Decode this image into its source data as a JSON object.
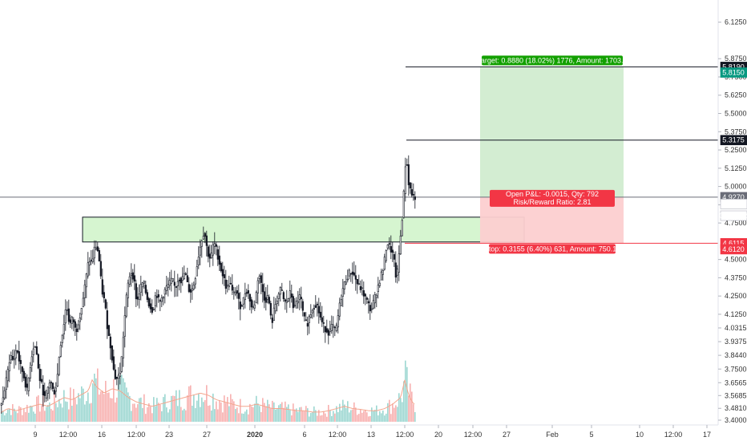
{
  "chart_data": {
    "type": "candlestick",
    "title": "",
    "xlabel": "",
    "ylabel": "",
    "ylim": [
      3.4,
      6.2
    ],
    "y_ticks": [
      "6.1250",
      "5.8750",
      "5.7500",
      "5.6250",
      "5.5000",
      "5.3750",
      "5.2500",
      "5.1250",
      "5.0000",
      "4.8750",
      "4.7500",
      "4.5000",
      "4.3750",
      "4.2500",
      "4.1250",
      "4.0315",
      "3.9375",
      "3.8440",
      "3.7500",
      "3.6565",
      "3.5685",
      "3.4810",
      "3.4000"
    ],
    "x_ticks": [
      "9",
      "12:00",
      "16",
      "12:00",
      "23",
      "27",
      "2020",
      "6",
      "12:00",
      "13",
      "12:00",
      "20",
      "12:00",
      "27",
      "Feb",
      "5",
      "10",
      "12:00",
      "17"
    ],
    "price_tags": [
      {
        "label": "5.8190",
        "value": 5.819,
        "color": "#131722"
      },
      {
        "label": "5.8150",
        "value": 5.78,
        "color": "#089981"
      },
      {
        "label": "5.3175",
        "value": 5.3175,
        "color": "#131722"
      },
      {
        "label": "4.9270",
        "value": 4.927,
        "color": "#6a6d78"
      },
      {
        "label": "4.9255",
        "value": 4.88,
        "color": "#ffffff"
      },
      {
        "label": "02:14:52",
        "value": 4.8,
        "color": "#ffffff"
      },
      {
        "label": "4.6115",
        "value": 4.6115,
        "color": "#f23645"
      },
      {
        "label": "4.6120",
        "value": 4.57,
        "color": "#f23645"
      }
    ],
    "horizontal_lines": [
      {
        "name": "target-line",
        "value": 5.819
      },
      {
        "name": "recent-high-line",
        "value": 5.3175
      },
      {
        "name": "entry-line",
        "value": 4.927
      },
      {
        "name": "stop-line",
        "value": 4.6115
      }
    ],
    "support_zone": {
      "low": 4.62,
      "high": 4.79
    },
    "position": {
      "entry": 4.927,
      "target": 5.819,
      "stop": 4.6115,
      "target_label": "Target: 0.8880 (18.02%) 1776, Amount: 1703.3",
      "open_label": "Open P&L: -0.0015, Qty: 792",
      "ratio_label": "Risk/Reward Ratio: 2.81",
      "stop_label": "Stop: 0.3155 (6.40%) 631, Amount: 750.12"
    },
    "colors": {
      "up": "#26a69a",
      "down": "#ef5350",
      "candle": "#131722",
      "zone_fill": "#ccf2c4",
      "target_fill": "#d1ecd0",
      "stop_fill": "#fccfd0",
      "target_tag": "#13a000",
      "stop_tag": "#f23645",
      "stop_line": "#f23645"
    },
    "price_path": [
      [
        0,
        3.49
      ],
      [
        5,
        3.55
      ],
      [
        10,
        3.7
      ],
      [
        14,
        3.85
      ],
      [
        18,
        3.8
      ],
      [
        22,
        3.9
      ],
      [
        26,
        3.78
      ],
      [
        30,
        3.72
      ],
      [
        35,
        3.6
      ],
      [
        40,
        3.82
      ],
      [
        44,
        3.93
      ],
      [
        47,
        3.85
      ],
      [
        50,
        3.7
      ],
      [
        54,
        3.62
      ],
      [
        57,
        3.55
      ],
      [
        60,
        3.6
      ],
      [
        64,
        3.68
      ],
      [
        68,
        3.58
      ],
      [
        72,
        3.65
      ],
      [
        76,
        3.9
      ],
      [
        80,
        4.02
      ],
      [
        84,
        4.2
      ],
      [
        88,
        4.05
      ],
      [
        92,
        4.1
      ],
      [
        96,
        4.0
      ],
      [
        100,
        4.1
      ],
      [
        104,
        4.2
      ],
      [
        108,
        4.35
      ],
      [
        112,
        4.5
      ],
      [
        116,
        4.48
      ],
      [
        120,
        4.6
      ],
      [
        124,
        4.55
      ],
      [
        128,
        4.3
      ],
      [
        132,
        4.2
      ],
      [
        136,
        4.0
      ],
      [
        140,
        3.88
      ],
      [
        144,
        3.7
      ],
      [
        148,
        3.68
      ],
      [
        152,
        3.75
      ],
      [
        156,
        4.05
      ],
      [
        160,
        4.3
      ],
      [
        164,
        4.42
      ],
      [
        168,
        4.38
      ],
      [
        172,
        4.2
      ],
      [
        176,
        4.3
      ],
      [
        180,
        4.35
      ],
      [
        184,
        4.25
      ],
      [
        188,
        4.18
      ],
      [
        192,
        4.15
      ],
      [
        196,
        4.28
      ],
      [
        200,
        4.2
      ],
      [
        204,
        4.25
      ],
      [
        208,
        4.3
      ],
      [
        212,
        4.33
      ],
      [
        216,
        4.36
      ],
      [
        220,
        4.3
      ],
      [
        224,
        4.38
      ],
      [
        228,
        4.35
      ],
      [
        232,
        4.42
      ],
      [
        236,
        4.3
      ],
      [
        240,
        4.28
      ],
      [
        244,
        4.35
      ],
      [
        248,
        4.5
      ],
      [
        252,
        4.62
      ],
      [
        256,
        4.7
      ],
      [
        260,
        4.55
      ],
      [
        264,
        4.5
      ],
      [
        268,
        4.62
      ],
      [
        272,
        4.55
      ],
      [
        276,
        4.45
      ],
      [
        280,
        4.38
      ],
      [
        284,
        4.3
      ],
      [
        288,
        4.35
      ],
      [
        292,
        4.25
      ],
      [
        296,
        4.3
      ],
      [
        300,
        4.18
      ],
      [
        304,
        4.2
      ],
      [
        308,
        4.3
      ],
      [
        312,
        4.25
      ],
      [
        316,
        4.15
      ],
      [
        320,
        4.22
      ],
      [
        324,
        4.42
      ],
      [
        328,
        4.3
      ],
      [
        332,
        4.22
      ],
      [
        336,
        4.25
      ],
      [
        340,
        4.05
      ],
      [
        344,
        4.18
      ],
      [
        348,
        4.25
      ],
      [
        352,
        4.3
      ],
      [
        356,
        4.2
      ],
      [
        360,
        4.22
      ],
      [
        364,
        4.28
      ],
      [
        368,
        4.15
      ],
      [
        372,
        4.22
      ],
      [
        376,
        4.25
      ],
      [
        380,
        4.1
      ],
      [
        384,
        4.05
      ],
      [
        388,
        4.12
      ],
      [
        392,
        4.18
      ],
      [
        396,
        4.2
      ],
      [
        400,
        4.12
      ],
      [
        404,
        4.05
      ],
      [
        408,
        4.02
      ],
      [
        412,
        4.0
      ],
      [
        416,
        4.05
      ],
      [
        420,
        4.0
      ],
      [
        424,
        4.15
      ],
      [
        428,
        4.28
      ],
      [
        432,
        4.35
      ],
      [
        436,
        4.4
      ],
      [
        440,
        4.42
      ],
      [
        444,
        4.38
      ],
      [
        448,
        4.32
      ],
      [
        452,
        4.3
      ],
      [
        456,
        4.25
      ],
      [
        460,
        4.2
      ],
      [
        464,
        4.15
      ],
      [
        468,
        4.22
      ],
      [
        472,
        4.3
      ],
      [
        476,
        4.38
      ],
      [
        480,
        4.45
      ],
      [
        484,
        4.62
      ],
      [
        488,
        4.58
      ],
      [
        492,
        4.52
      ],
      [
        496,
        4.35
      ],
      [
        500,
        4.6
      ],
      [
        504,
        4.85
      ],
      [
        506,
        5.05
      ],
      [
        508,
        5.25
      ],
      [
        510,
        5.05
      ],
      [
        513,
        4.98
      ],
      [
        516,
        4.93
      ]
    ],
    "volume_path": [
      [
        0,
        0.2
      ],
      [
        10,
        0.3
      ],
      [
        20,
        0.25
      ],
      [
        30,
        0.3
      ],
      [
        40,
        0.35
      ],
      [
        50,
        0.4
      ],
      [
        60,
        0.35
      ],
      [
        70,
        0.45
      ],
      [
        80,
        0.55
      ],
      [
        90,
        0.5
      ],
      [
        100,
        0.6
      ],
      [
        110,
        0.7
      ],
      [
        115,
        0.95
      ],
      [
        120,
        0.8
      ],
      [
        130,
        0.65
      ],
      [
        140,
        0.75
      ],
      [
        150,
        0.7
      ],
      [
        160,
        0.55
      ],
      [
        170,
        0.45
      ],
      [
        180,
        0.4
      ],
      [
        190,
        0.35
      ],
      [
        200,
        0.4
      ],
      [
        210,
        0.45
      ],
      [
        220,
        0.5
      ],
      [
        230,
        0.55
      ],
      [
        240,
        0.6
      ],
      [
        250,
        0.65
      ],
      [
        260,
        0.6
      ],
      [
        270,
        0.5
      ],
      [
        280,
        0.45
      ],
      [
        290,
        0.4
      ],
      [
        300,
        0.35
      ],
      [
        310,
        0.35
      ],
      [
        320,
        0.4
      ],
      [
        330,
        0.35
      ],
      [
        340,
        0.3
      ],
      [
        350,
        0.3
      ],
      [
        360,
        0.28
      ],
      [
        370,
        0.25
      ],
      [
        380,
        0.25
      ],
      [
        390,
        0.22
      ],
      [
        400,
        0.22
      ],
      [
        410,
        0.25
      ],
      [
        420,
        0.3
      ],
      [
        430,
        0.35
      ],
      [
        440,
        0.3
      ],
      [
        450,
        0.28
      ],
      [
        460,
        0.25
      ],
      [
        470,
        0.25
      ],
      [
        480,
        0.3
      ],
      [
        490,
        0.4
      ],
      [
        500,
        0.55
      ],
      [
        505,
        0.95
      ],
      [
        510,
        0.6
      ],
      [
        516,
        0.4
      ]
    ]
  }
}
